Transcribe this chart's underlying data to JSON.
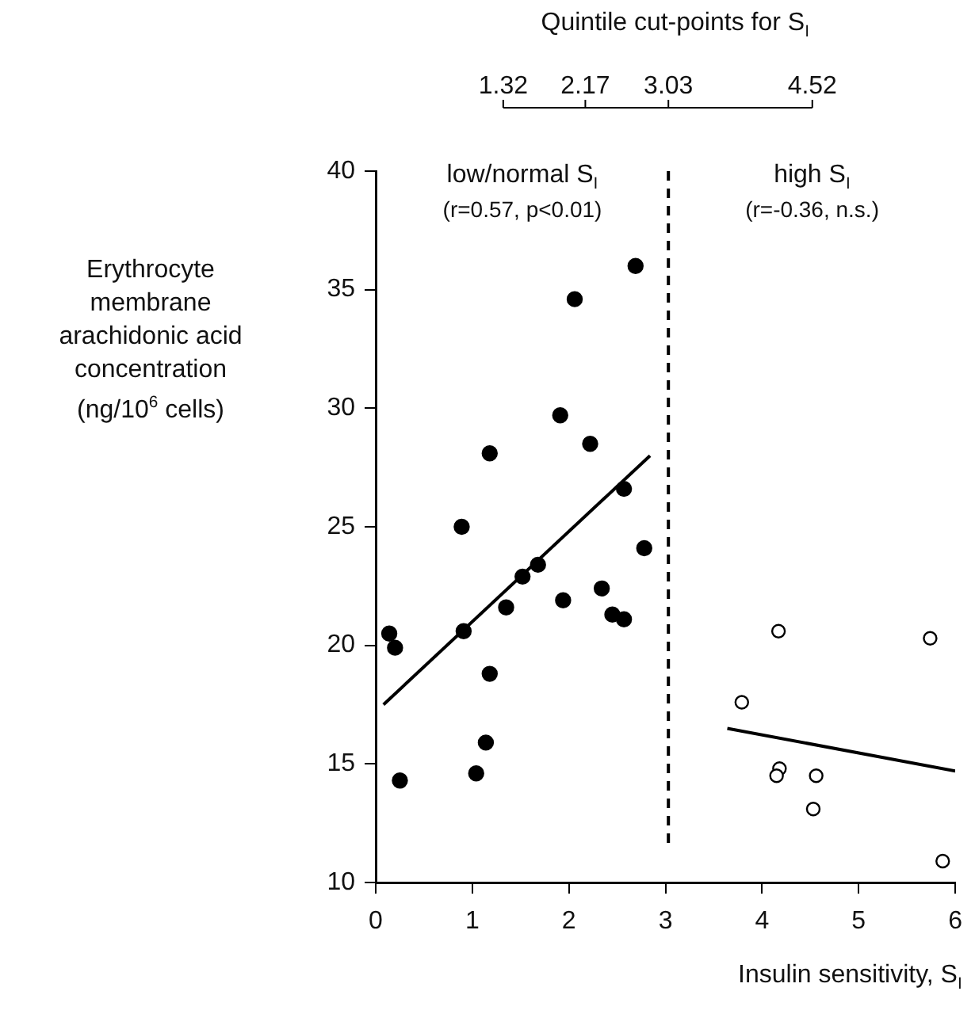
{
  "chart_data": {
    "type": "scatter",
    "xlabel": "Insulin sensitivity, S$_{I}$",
    "ylabel": "Erythrocyte membrane arachidonic acid concentration (ng/10$^{6}$ cells)",
    "x2label": "Quintile cut-points for S$_{I}$",
    "annotations": [
      "low/normal S$_{I}$",
      "(r=0.57, p<0.01)",
      "high S$_{I}$",
      "(r=-0.36, n.s.)"
    ],
    "xlim": [
      0,
      6
    ],
    "xticks": [
      0,
      1,
      2,
      3,
      4,
      5,
      6
    ],
    "x2lim": [
      0,
      6
    ],
    "x2ticks": [
      {
        "value": 1.32,
        "label": "1.32"
      },
      {
        "value": 2.17,
        "label": "2.17"
      },
      {
        "value": 3.03,
        "label": "3.03"
      },
      {
        "value": 4.52,
        "label": "4.52"
      }
    ],
    "ylim": [
      10,
      40
    ],
    "yticks": [
      10,
      15,
      20,
      25,
      30,
      35,
      40
    ],
    "grid": false,
    "legend": false,
    "ref_lines": [
      {
        "axis": "x",
        "value": 3.03,
        "line_style": "dashed",
        "color": "#000000"
      }
    ],
    "series": [
      {
        "color": "#000000",
        "marker": "circle",
        "x": [
          2.69,
          2.06,
          1.91,
          2.22,
          1.18,
          2.57,
          0.89,
          2.78,
          1.68,
          1.52,
          1.35,
          1.94,
          2.34,
          2.45,
          2.57,
          0.14,
          0.2,
          0.91,
          1.18,
          1.14,
          1.04,
          0.25
        ],
        "values": [
          36.0,
          34.6,
          29.7,
          28.5,
          28.1,
          26.6,
          25.0,
          24.1,
          23.4,
          22.9,
          21.6,
          21.9,
          22.4,
          21.3,
          21.1,
          20.5,
          19.9,
          20.6,
          18.8,
          15.9,
          14.6,
          14.3
        ]
      },
      {
        "color": "#000000",
        "marker": "circle",
        "x": [
          4.17,
          5.74,
          3.79,
          4.18,
          4.15,
          4.56,
          4.53,
          5.87
        ],
        "values": [
          20.6,
          20.3,
          17.6,
          14.8,
          14.5,
          14.5,
          13.1,
          10.9
        ]
      },
      {
        "type": "line",
        "marker": "none",
        "color": "#000000",
        "x": [
          0.08,
          2.84
        ],
        "values": [
          17.5,
          28.0
        ]
      },
      {
        "type": "line",
        "marker": "none",
        "color": "#000000",
        "x": [
          3.64,
          6.0
        ],
        "values": [
          16.5,
          14.7
        ]
      }
    ]
  }
}
